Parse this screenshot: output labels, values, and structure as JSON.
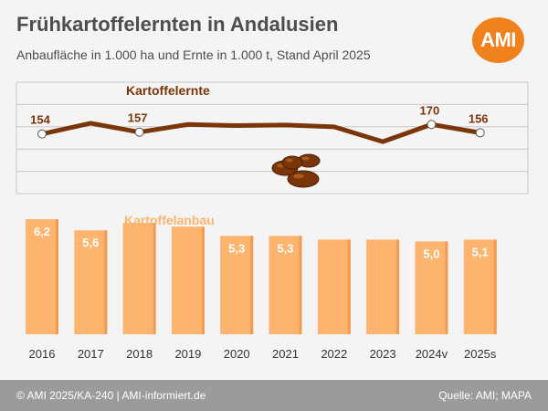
{
  "header": {
    "title": "Frühkartoffelernten in Andalusien",
    "subtitle": "Anbaufläche in 1.000 ha und Ernte in 1.000 t, Stand April 2025",
    "logo_text": "AMI"
  },
  "footer": {
    "copyright": "© AMI 2025/KA-240 | AMI-informiert.de",
    "source": "Quelle: AMI; MAPA"
  },
  "colors": {
    "harvest_line": "#7a3508",
    "area_bar": "#fdb46f",
    "area_bar_dark": "#f39a4f",
    "area_label": "#fdb46f",
    "harvest_label": "#7a3508",
    "grid": "#c8c8c8",
    "axis_text": "#333333",
    "logo": "#f0821e",
    "footer": "#9b9b9b"
  },
  "chart_data": [
    {
      "type": "line",
      "series_label": "Kartoffelernte",
      "categories": [
        "2016",
        "2017",
        "2018",
        "2019",
        "2020",
        "2021",
        "2022",
        "2023",
        "2024v",
        "2025s"
      ],
      "values": [
        154,
        172,
        157,
        170,
        168,
        169,
        166,
        141,
        170,
        156
      ],
      "labels": [
        "154",
        "",
        "157",
        "",
        "",
        "",
        "",
        "",
        "170",
        "156"
      ],
      "icon": "potatoes-icon"
    },
    {
      "type": "bar",
      "series_label": "Kartoffelanbau",
      "categories": [
        "2016",
        "2017",
        "2018",
        "2019",
        "2020",
        "2021",
        "2022",
        "2023",
        "2024v",
        "2025s"
      ],
      "values": [
        6.2,
        5.6,
        6.0,
        5.8,
        5.3,
        5.3,
        5.1,
        5.1,
        5.0,
        5.1
      ],
      "labels": [
        "6,2",
        "5,6",
        "",
        "",
        "5,3",
        "5,3",
        "",
        "",
        "5,0",
        "5,1"
      ],
      "ylim": [
        0,
        6.2
      ]
    }
  ]
}
